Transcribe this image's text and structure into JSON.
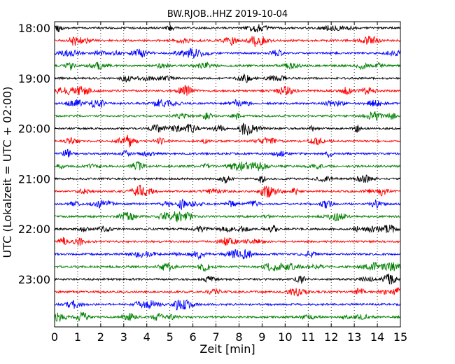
{
  "chart_data": {
    "type": "line",
    "title": "BW.RJOB..HHZ 2019-10-04",
    "xlabel": "Zeit  [min]",
    "ylabel": "UTC (Lokalzeit = UTC + 02:00)",
    "xlim": [
      0,
      15
    ],
    "x_ticks": [
      "0",
      "1",
      "2",
      "3",
      "4",
      "5",
      "6",
      "7",
      "8",
      "9",
      "10",
      "11",
      "12",
      "13",
      "14",
      "15"
    ],
    "y_tick_labels": [
      "18:00",
      "19:00",
      "20:00",
      "21:00",
      "22:00",
      "23:00"
    ],
    "y_tick_trace_index": [
      0,
      4,
      8,
      12,
      16,
      20
    ],
    "trace_count": 24,
    "trace_minutes": 15,
    "colors": [
      "#000000",
      "#ff0000",
      "#0000ff",
      "#008000"
    ],
    "grid": "vertical-dotted"
  }
}
